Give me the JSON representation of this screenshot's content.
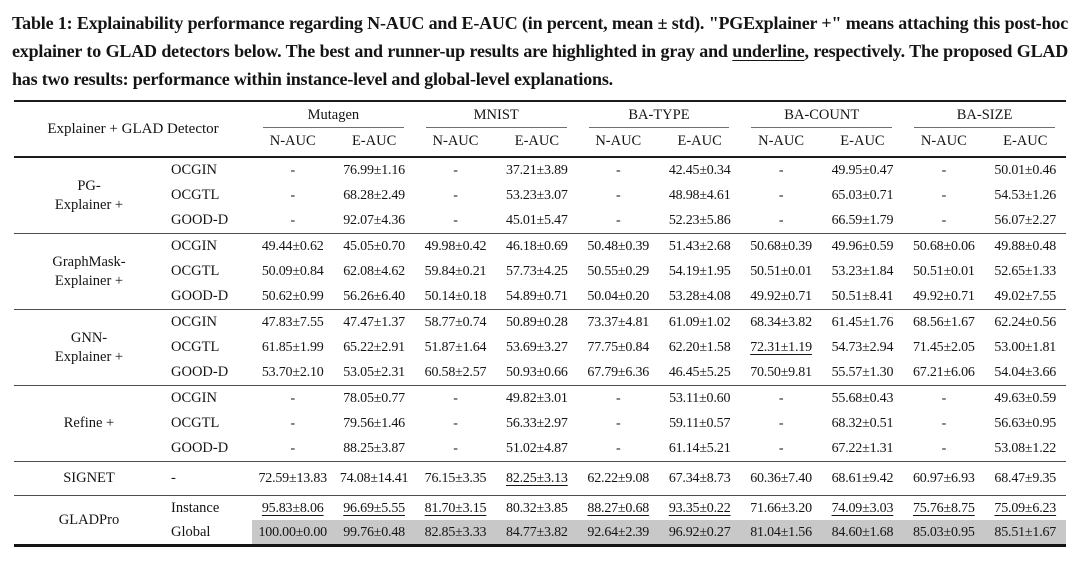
{
  "caption": {
    "prefix": "Table 1: Explainability performance regarding N-AUC and E-AUC (in percent, mean ± std). \"PGExplainer +\" means attaching this post-hoc explainer to GLAD detectors below. The best and runner-up results are highlighted in gray and ",
    "underlined_word": "underline",
    "suffix": ", respectively. The proposed GLAD has two results: performance within instance-level and global-level explanations."
  },
  "table": {
    "header": {
      "explainer_detector": "Explainer  +  GLAD Detector",
      "groups": [
        "Mutagen",
        "MNIST",
        "BA-TYPE",
        "BA-COUNT",
        "BA-SIZE"
      ],
      "subcols": [
        "N-AUC",
        "E-AUC"
      ]
    },
    "highlight_color": "#c8c8c8",
    "sections": [
      {
        "explainer": [
          "PG-",
          "Explainer +"
        ],
        "rows": [
          {
            "detector": "OCGIN",
            "cells": [
              "-",
              "76.99±1.16",
              "-",
              "37.21±3.89",
              "-",
              "42.45±0.34",
              "-",
              "49.95±0.47",
              "-",
              "50.01±0.46"
            ]
          },
          {
            "detector": "OCGTL",
            "cells": [
              "-",
              "68.28±2.49",
              "-",
              "53.23±3.07",
              "-",
              "48.98±4.61",
              "-",
              "65.03±0.71",
              "-",
              "54.53±1.26"
            ]
          },
          {
            "detector": "GOOD-D",
            "cells": [
              "-",
              "92.07±4.36",
              "-",
              "45.01±5.47",
              "-",
              "52.23±5.86",
              "-",
              "66.59±1.79",
              "-",
              "56.07±2.27"
            ]
          }
        ]
      },
      {
        "explainer": [
          "GraphMask-",
          "Explainer +"
        ],
        "rows": [
          {
            "detector": "OCGIN",
            "cells": [
              "49.44±0.62",
              "45.05±0.70",
              "49.98±0.42",
              "46.18±0.69",
              "50.48±0.39",
              "51.43±2.68",
              "50.68±0.39",
              "49.96±0.59",
              "50.68±0.06",
              "49.88±0.48"
            ]
          },
          {
            "detector": "OCGTL",
            "cells": [
              "50.09±0.84",
              "62.08±4.62",
              "59.84±0.21",
              "57.73±4.25",
              "50.55±0.29",
              "54.19±1.95",
              "50.51±0.01",
              "53.23±1.84",
              "50.51±0.01",
              "52.65±1.33"
            ]
          },
          {
            "detector": "GOOD-D",
            "cells": [
              "50.62±0.99",
              "56.26±6.40",
              "50.14±0.18",
              "54.89±0.71",
              "50.04±0.20",
              "53.28±4.08",
              "49.92±0.71",
              "50.51±8.41",
              "49.92±0.71",
              "49.02±7.55"
            ]
          }
        ]
      },
      {
        "explainer": [
          "GNN-",
          "Explainer +"
        ],
        "rows": [
          {
            "detector": "OCGIN",
            "cells": [
              "47.83±7.55",
              "47.47±1.37",
              "58.77±0.74",
              "50.89±0.28",
              "73.37±4.81",
              "61.09±1.02",
              "68.34±3.82",
              "61.45±1.76",
              "68.56±1.67",
              "62.24±0.56"
            ]
          },
          {
            "detector": "OCGTL",
            "cells": [
              "61.85±1.99",
              "65.22±2.91",
              "51.87±1.64",
              "53.69±3.27",
              "77.75±0.84",
              "62.20±1.58",
              {
                "t": "72.31±1.19",
                "u": true
              },
              "54.73±2.94",
              "71.45±2.05",
              "53.00±1.81"
            ]
          },
          {
            "detector": "GOOD-D",
            "cells": [
              "53.70±2.10",
              "53.05±2.31",
              "60.58±2.57",
              "50.93±0.66",
              "67.79±6.36",
              "46.45±5.25",
              "70.50±9.81",
              "55.57±1.30",
              "67.21±6.06",
              "54.04±3.66"
            ]
          }
        ]
      },
      {
        "explainer": [
          "Refine +"
        ],
        "rows": [
          {
            "detector": "OCGIN",
            "cells": [
              "-",
              "78.05±0.77",
              "-",
              "49.82±3.01",
              "-",
              "53.11±0.60",
              "-",
              "55.68±0.43",
              "-",
              "49.63±0.59"
            ]
          },
          {
            "detector": "OCGTL",
            "cells": [
              "-",
              "79.56±1.46",
              "-",
              "56.33±2.97",
              "-",
              "59.11±0.57",
              "-",
              "68.32±0.51",
              "-",
              "56.63±0.95"
            ]
          },
          {
            "detector": "GOOD-D",
            "cells": [
              "-",
              "88.25±3.87",
              "-",
              "51.02±4.87",
              "-",
              "61.14±5.21",
              "-",
              "67.22±1.31",
              "-",
              "53.08±1.22"
            ]
          }
        ]
      },
      {
        "explainer": [
          "SIGNET"
        ],
        "tall": true,
        "rows": [
          {
            "detector": "-",
            "cells": [
              "72.59±13.83",
              "74.08±14.41",
              "76.15±3.35",
              {
                "t": "82.25±3.13",
                "u": true
              },
              "62.22±9.08",
              "67.34±8.73",
              "60.36±7.40",
              "68.61±9.42",
              "60.97±6.93",
              "68.47±9.35"
            ]
          }
        ]
      },
      {
        "explainer": [
          "GLADPro"
        ],
        "compact": true,
        "rows": [
          {
            "detector": "Instance",
            "cells": [
              {
                "t": "95.83±8.06",
                "u": true
              },
              {
                "t": "96.69±5.55",
                "u": true
              },
              {
                "t": "81.70±3.15",
                "u": true
              },
              "80.32±3.85",
              {
                "t": "88.27±0.68",
                "u": true
              },
              {
                "t": "93.35±0.22",
                "u": true
              },
              "71.66±3.20",
              {
                "t": "74.09±3.03",
                "u": true
              },
              {
                "t": "75.76±8.75",
                "u": true
              },
              {
                "t": "75.09±6.23",
                "u": true
              }
            ]
          },
          {
            "detector": "Global",
            "highlight": true,
            "cells": [
              "100.00±0.00",
              "99.76±0.48",
              "82.85±3.33",
              "84.77±3.82",
              "92.64±2.39",
              "96.92±0.27",
              "81.04±1.56",
              "84.60±1.68",
              "85.03±0.95",
              "85.51±1.67"
            ]
          }
        ]
      }
    ]
  }
}
